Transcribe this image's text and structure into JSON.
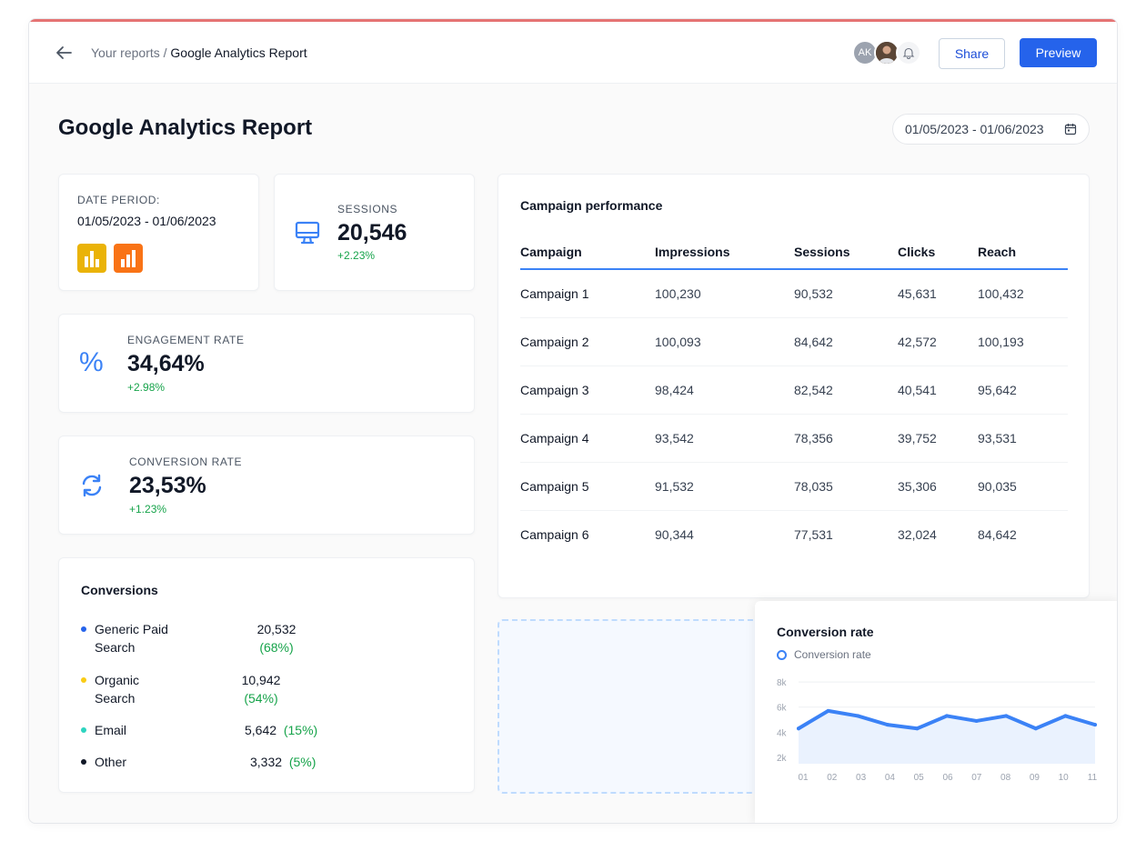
{
  "header": {
    "breadcrumb_parent": "Your reports /",
    "breadcrumb_current": "Google Analytics Report",
    "avatar_initials": "AK",
    "share_label": "Share",
    "preview_label": "Preview"
  },
  "page": {
    "title": "Google Analytics Report",
    "date_range": "01/05/2023 - 01/06/2023"
  },
  "date_period": {
    "label": "DATE PERIOD:",
    "value": "01/05/2023 - 01/06/2023"
  },
  "sessions": {
    "label": "SESSIONS",
    "value": "20,546",
    "delta": "+2.23%"
  },
  "engagement": {
    "label": "ENGAGEMENT RATE",
    "value": "34,64%",
    "delta": "+2.98%",
    "icon": "%"
  },
  "conversion": {
    "label": "CONVERSION RATE",
    "value": "23,53%",
    "delta": "+1.23%"
  },
  "conversions": {
    "title": "Conversions",
    "items": [
      {
        "name": "Generic Paid Search",
        "value": "20,532",
        "pct": "(68%)",
        "color": "#2563eb"
      },
      {
        "name": "Organic Search",
        "value": "10,942",
        "pct": "(54%)",
        "color": "#facc15"
      },
      {
        "name": "Email",
        "value": "5,642",
        "pct": "(15%)",
        "color": "#2dd4bf"
      },
      {
        "name": "Other",
        "value": "3,332",
        "pct": "(5%)",
        "color": "#111827"
      }
    ]
  },
  "campaign_table": {
    "title": "Campaign performance",
    "columns": [
      "Campaign",
      "Impressions",
      "Sessions",
      "Clicks",
      "Reach"
    ],
    "rows": [
      [
        "Campaign 1",
        "100,230",
        "90,532",
        "45,631",
        "100,432"
      ],
      [
        "Campaign 2",
        "100,093",
        "84,642",
        "42,572",
        "100,193"
      ],
      [
        "Campaign 3",
        "98,424",
        "82,542",
        "40,541",
        "95,642"
      ],
      [
        "Campaign 4",
        "93,542",
        "78,356",
        "39,752",
        "93,531"
      ],
      [
        "Campaign 5",
        "91,532",
        "78,035",
        "35,306",
        "90,035"
      ],
      [
        "Campaign 6",
        "90,344",
        "77,531",
        "32,024",
        "84,642"
      ]
    ]
  },
  "chart_data": {
    "type": "area",
    "title": "Conversion rate",
    "legend": "Conversion rate",
    "x": [
      "01",
      "02",
      "03",
      "04",
      "05",
      "06",
      "07",
      "08",
      "09",
      "10",
      "11"
    ],
    "series": [
      {
        "name": "Conversion rate",
        "values": [
          4300,
          5700,
          5300,
          4600,
          4300,
          5300,
          4900,
          5300,
          4300,
          5300,
          4600
        ]
      }
    ],
    "yticks": [
      "2k",
      "4k",
      "6k",
      "8k"
    ],
    "ylim": [
      1500,
      8800
    ],
    "grid": true,
    "color": "#3b82f6"
  }
}
